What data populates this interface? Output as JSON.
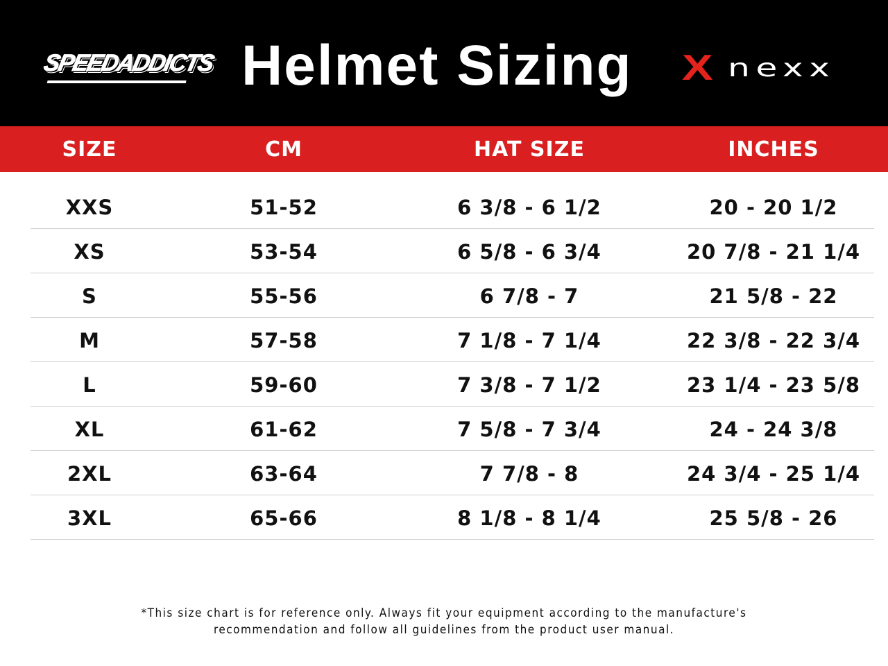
{
  "header": {
    "title": "Helmet Sizing",
    "left_logo": "SPEEDADDICTS",
    "right_logo": "nexx",
    "right_logo_mark": "X",
    "colors": {
      "background": "#000000",
      "accent": "#d91f1f",
      "nexx_red": "#e4231d"
    }
  },
  "table": {
    "columns": [
      "SIZE",
      "CM",
      "HAT SIZE",
      "INCHES"
    ],
    "rows": [
      [
        "XXS",
        "51-52",
        "6 3/8 - 6 1/2",
        "20 - 20 1/2"
      ],
      [
        "XS",
        "53-54",
        "6 5/8 - 6 3/4",
        "20 7/8 - 21 1/4"
      ],
      [
        "S",
        "55-56",
        "6 7/8 - 7",
        "21 5/8 - 22"
      ],
      [
        "M",
        "57-58",
        "7 1/8 - 7 1/4",
        "22 3/8 - 22 3/4"
      ],
      [
        "L",
        "59-60",
        "7 3/8 - 7 1/2",
        "23 1/4 - 23 5/8"
      ],
      [
        "XL",
        "61-62",
        "7 5/8 - 7 3/4",
        "24 - 24 3/8"
      ],
      [
        "2XL",
        "63-64",
        "7 7/8 - 8",
        "24 3/4 - 25 1/4"
      ],
      [
        "3XL",
        "65-66",
        "8 1/8 - 8 1/4",
        "25 5/8 - 26"
      ]
    ]
  },
  "footnote": {
    "line1": "*This size chart is for reference only. Always fit your equipment according to the manufacture's",
    "line2": "recommendation and follow all guidelines from the product user manual."
  }
}
